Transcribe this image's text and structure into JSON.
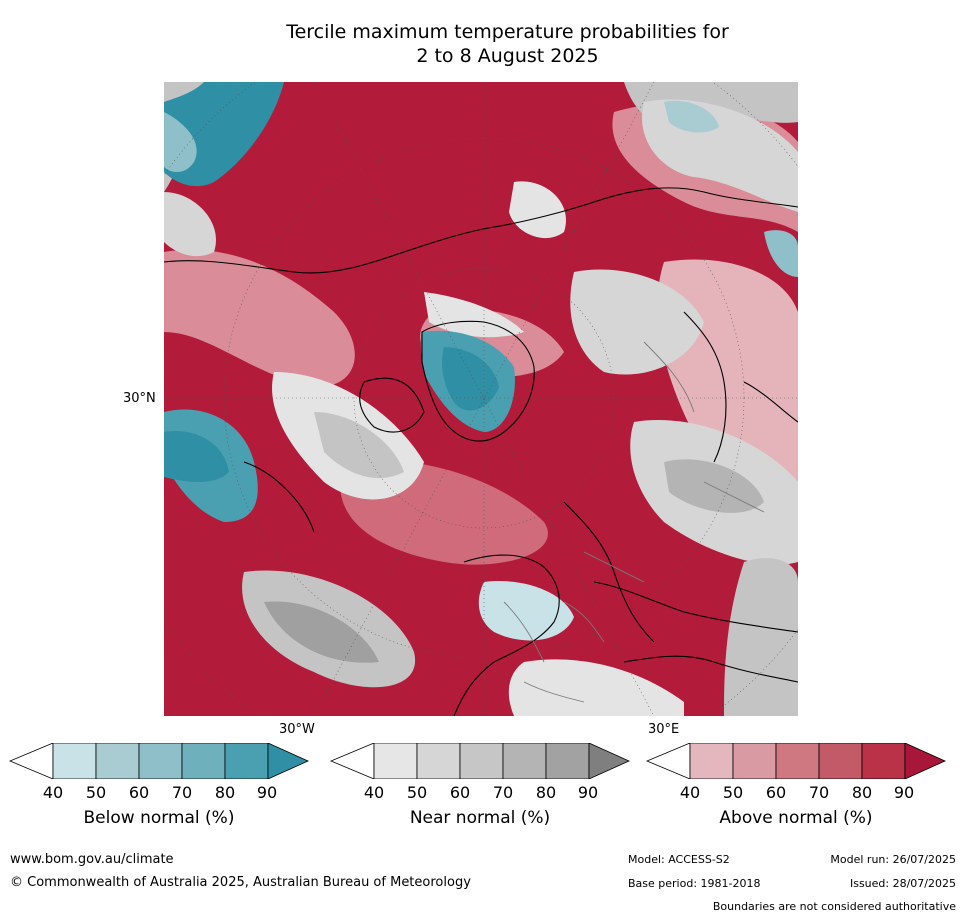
{
  "title_line1": "Tercile maximum temperature probabilities for",
  "title_line2": "2 to 8 August 2025",
  "map": {
    "lat_label": "30°N",
    "lon_label_left": "30°W",
    "lon_label_right": "30°E",
    "colors": {
      "above_90": "#b31b3a",
      "above_80": "#c23750",
      "above_70": "#cf6b7a",
      "above_60": "#da8d98",
      "above_50": "#e5b3ba",
      "near_90": "#a0a0a0",
      "near_80": "#b4b4b4",
      "near_70": "#c4c4c4",
      "near_60": "#d6d6d6",
      "near_50": "#e4e4e4",
      "below_90": "#2f8fa4",
      "below_80": "#4aa0b1",
      "below_70": "#6fb0bd",
      "below_60": "#8fbfc8",
      "below_50": "#a9cbd2",
      "below_40": "#c9e2e8",
      "coast": "#000000",
      "border": "#7a7a7a"
    }
  },
  "colorbars": [
    {
      "label": "Below normal (%)",
      "ticks": [
        "40",
        "50",
        "60",
        "70",
        "80",
        "90"
      ],
      "colors": [
        "#ffffff",
        "#c9e2e8",
        "#a9cbd2",
        "#8fbfc8",
        "#6fb0bd",
        "#4aa0b1",
        "#2f8fa4"
      ]
    },
    {
      "label": "Near normal (%)",
      "ticks": [
        "40",
        "50",
        "60",
        "70",
        "80",
        "90"
      ],
      "colors": [
        "#ffffff",
        "#e6e6e6",
        "#d6d6d6",
        "#c6c6c6",
        "#b4b4b4",
        "#a2a2a2",
        "#7f7f7f"
      ]
    },
    {
      "label": "Above normal (%)",
      "ticks": [
        "40",
        "50",
        "60",
        "70",
        "80",
        "90"
      ],
      "colors": [
        "#ffffff",
        "#e3b7bd",
        "#d99aa3",
        "#cf7882",
        "#c25a68",
        "#b93248",
        "#a8163a"
      ]
    }
  ],
  "footer": {
    "website": "www.bom.gov.au/climate",
    "copyright": "© Commonwealth of Australia 2025, Australian Bureau of Meteorology",
    "model": "Model: ACCESS-S2",
    "base_period": "Base period: 1981-2018",
    "model_run": "Model run: 26/07/2025",
    "issued": "Issued: 28/07/2025",
    "disclaimer": "Boundaries are not considered authoritative"
  }
}
